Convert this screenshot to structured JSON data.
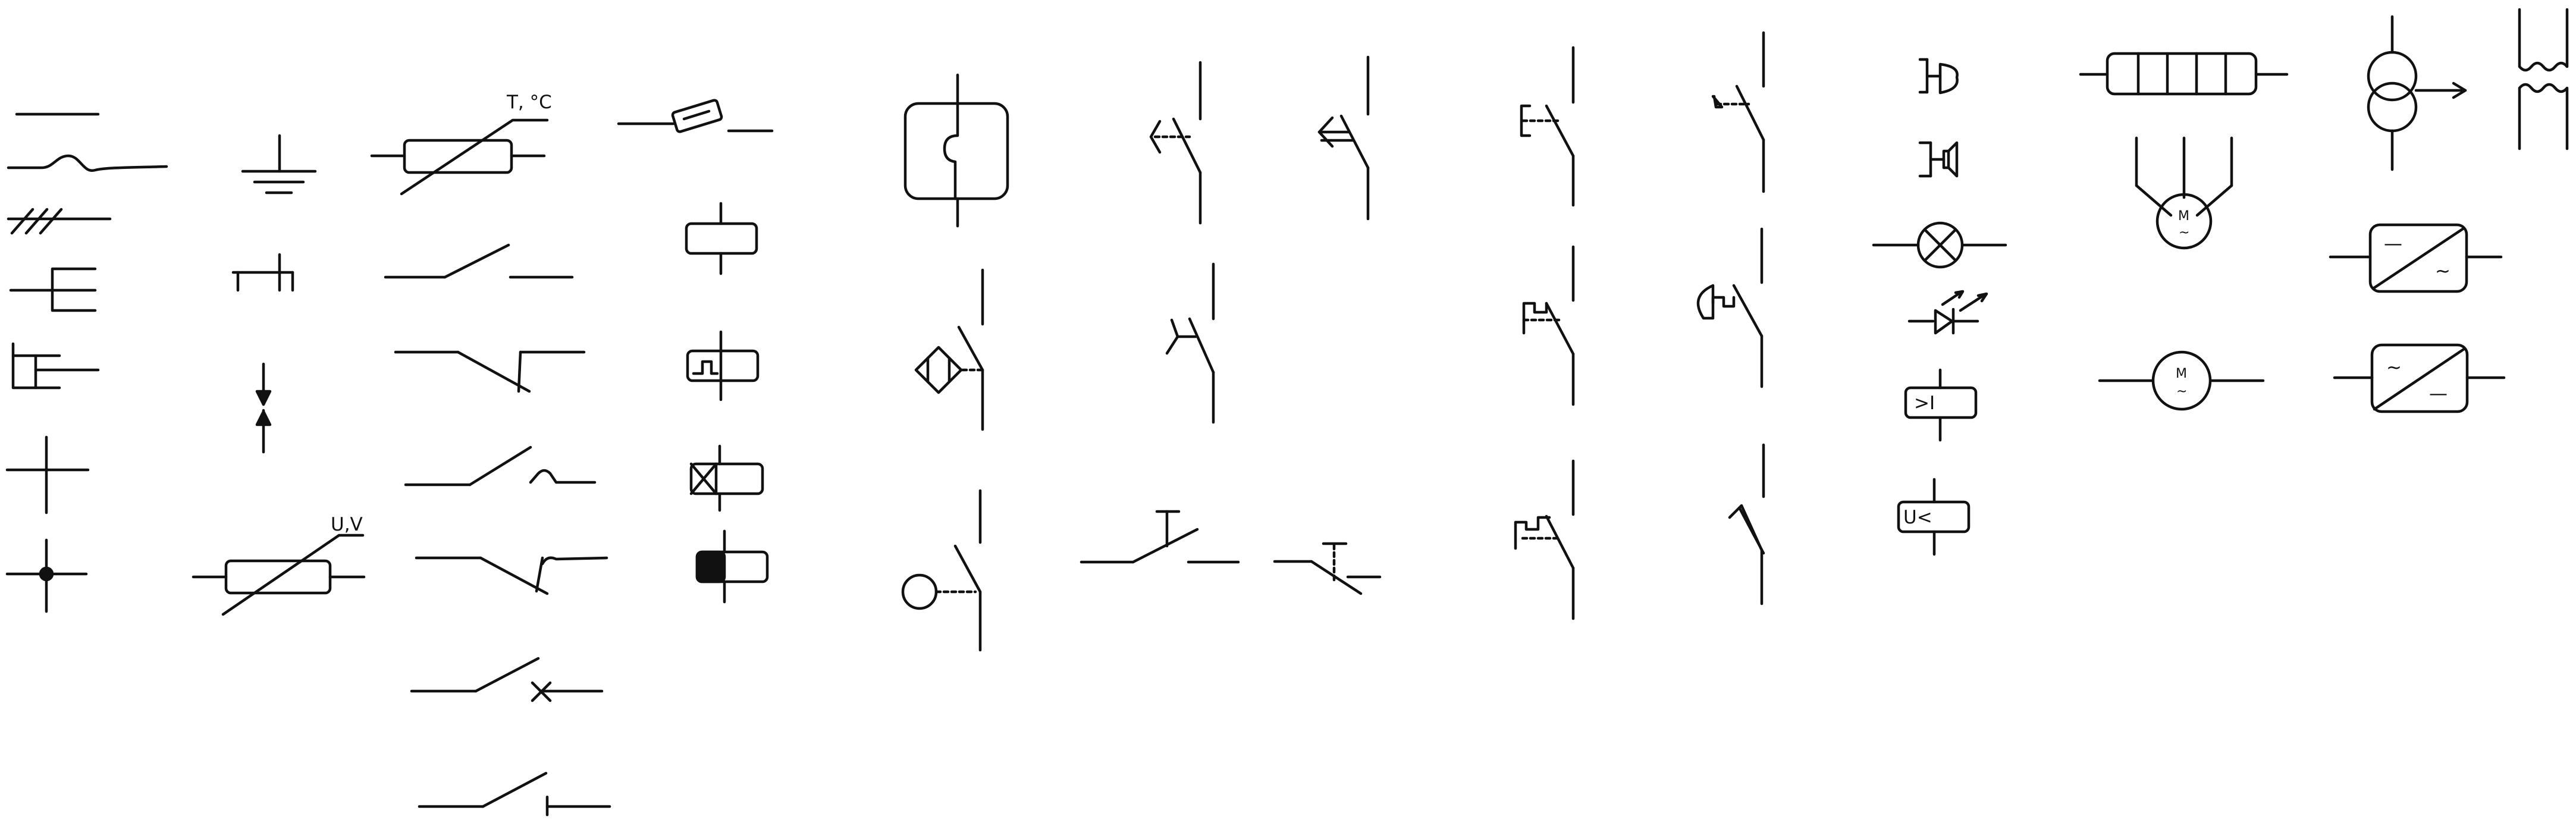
{
  "symbol_labels": {
    "thermistor": "T, °C",
    "varistor": "U,V",
    "motor_letter": "M",
    "motor_ac": "~",
    "converter_dc": "—",
    "converter_ac": "~",
    "overcurrent_relay": ">I",
    "undervoltage_relay": "U<"
  },
  "colors": {
    "stroke": "#111111",
    "background": "#ffffff"
  }
}
